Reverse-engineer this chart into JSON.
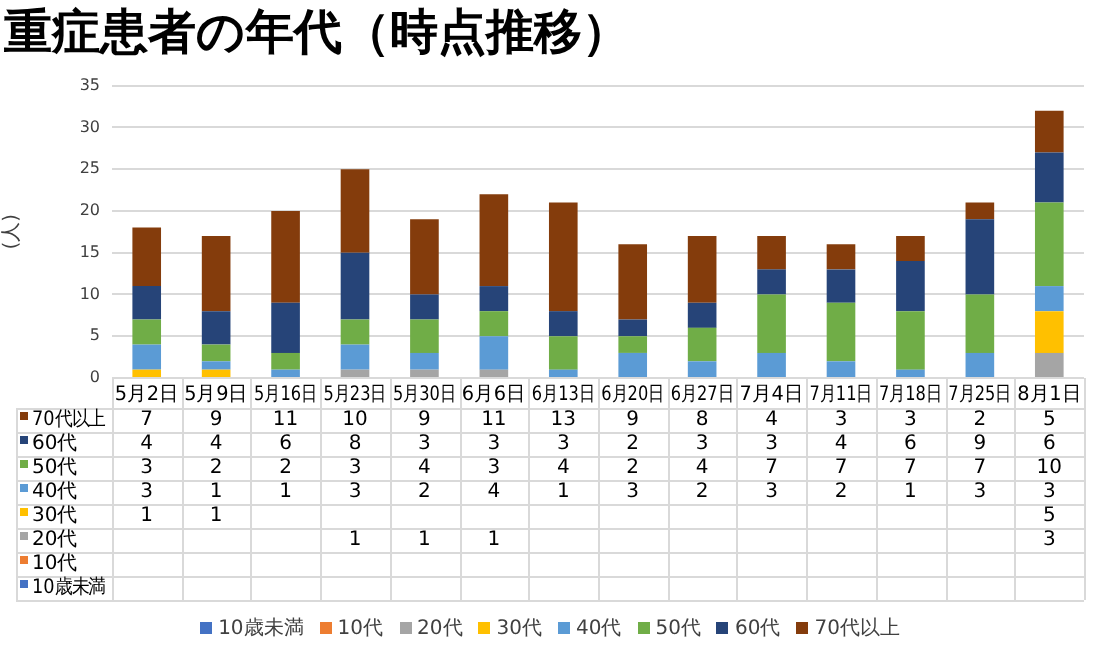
{
  "chart_data": {
    "type": "bar",
    "title": "重症患者の年代（時点推移）",
    "ylabel": "(人)",
    "stacked": true,
    "categories": [
      "5月2日",
      "5月9日",
      "5月16日",
      "5月23日",
      "5月30日",
      "6月6日",
      "6月13日",
      "6月20日",
      "6月27日",
      "7月4日",
      "7月11日",
      "7月18日",
      "7月25日",
      "8月1日"
    ],
    "series": [
      {
        "name": "10歳未満",
        "color": "#4472c4",
        "values": [
          null,
          null,
          null,
          null,
          null,
          null,
          null,
          null,
          null,
          null,
          null,
          null,
          null,
          null
        ]
      },
      {
        "name": "10代",
        "color": "#ed7d31",
        "values": [
          null,
          null,
          null,
          null,
          null,
          null,
          null,
          null,
          null,
          null,
          null,
          null,
          null,
          null
        ]
      },
      {
        "name": "20代",
        "color": "#a5a5a5",
        "values": [
          null,
          null,
          null,
          1,
          1,
          1,
          null,
          null,
          null,
          null,
          null,
          null,
          null,
          3
        ]
      },
      {
        "name": "30代",
        "color": "#ffc000",
        "values": [
          1,
          1,
          null,
          null,
          null,
          null,
          null,
          null,
          null,
          null,
          null,
          null,
          null,
          5
        ]
      },
      {
        "name": "40代",
        "color": "#5b9bd5",
        "values": [
          3,
          1,
          1,
          3,
          2,
          4,
          1,
          3,
          2,
          3,
          2,
          1,
          3,
          3
        ]
      },
      {
        "name": "50代",
        "color": "#70ad47",
        "values": [
          3,
          2,
          2,
          3,
          4,
          3,
          4,
          2,
          4,
          7,
          7,
          7,
          7,
          10
        ]
      },
      {
        "name": "60代",
        "color": "#264478",
        "values": [
          4,
          4,
          6,
          8,
          3,
          3,
          3,
          2,
          3,
          3,
          4,
          6,
          9,
          6
        ]
      },
      {
        "name": "70代以上",
        "color": "#843c0c",
        "values": [
          7,
          9,
          11,
          10,
          9,
          11,
          13,
          9,
          8,
          4,
          3,
          3,
          2,
          5
        ]
      }
    ],
    "ylim": [
      0,
      35
    ],
    "yticks": [
      0,
      5,
      10,
      15,
      20,
      25,
      30,
      35
    ],
    "grid": "y",
    "legend": "bottom",
    "data_labels": true
  }
}
